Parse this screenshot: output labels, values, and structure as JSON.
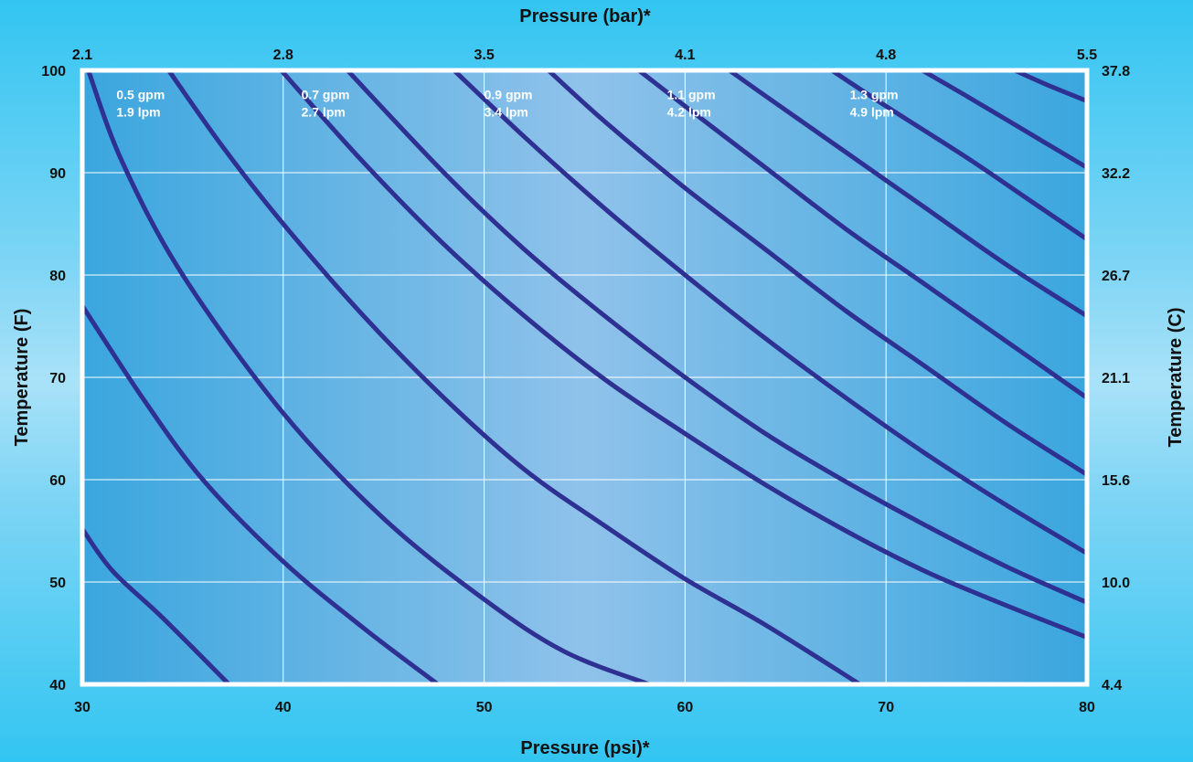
{
  "chart_data": {
    "type": "line",
    "title": "",
    "xlabel": "Pressure (psi)*",
    "x2label": "Pressure (bar)*",
    "ylabel": "Temperature (F)",
    "y2label": "Temperature (C)",
    "xlim": [
      30,
      80
    ],
    "ylim": [
      40,
      100
    ],
    "grid": true,
    "x_ticks": [
      "30",
      "40",
      "50",
      "60",
      "70",
      "80"
    ],
    "x2_ticks": [
      {
        "at": 30,
        "label": "2.1"
      },
      {
        "at": 40,
        "label": "2.8"
      },
      {
        "at": 50,
        "label": "3.5"
      },
      {
        "at": 60,
        "label": "4.1"
      },
      {
        "at": 70,
        "label": "4.8"
      },
      {
        "at": 80,
        "label": "5.5"
      }
    ],
    "y_ticks": [
      "40",
      "50",
      "60",
      "70",
      "80",
      "90",
      "100"
    ],
    "y2_ticks": [
      {
        "at": 40,
        "label": "4.4"
      },
      {
        "at": 50,
        "label": "10.0"
      },
      {
        "at": 60,
        "label": "15.6"
      },
      {
        "at": 70,
        "label": "21.1"
      },
      {
        "at": 80,
        "label": "26.7"
      },
      {
        "at": 90,
        "label": "32.2"
      },
      {
        "at": 100,
        "label": "37.8"
      }
    ],
    "curve_labels": [
      {
        "gpm": "0.5 gpm",
        "lpm": "1.9 lpm",
        "x": 31.7,
        "y": 97.2
      },
      {
        "gpm": "0.7 gpm",
        "lpm": "2.7 lpm",
        "x": 40.9,
        "y": 97.2
      },
      {
        "gpm": "0.9 gpm",
        "lpm": "3.4 lpm",
        "x": 50.0,
        "y": 97.2
      },
      {
        "gpm": "1.1 gpm",
        "lpm": "4.2 lpm",
        "x": 59.1,
        "y": 97.2
      },
      {
        "gpm": "1.3 gpm",
        "lpm": "4.9 lpm",
        "x": 68.2,
        "y": 97.2
      }
    ],
    "series": [
      {
        "values": [
          [
            30,
            55.2
          ],
          [
            31.5,
            51.1
          ],
          [
            34,
            46.5
          ],
          [
            37.3,
            40
          ]
        ]
      },
      {
        "values": [
          [
            30,
            77
          ],
          [
            33,
            68
          ],
          [
            36,
            60
          ],
          [
            40,
            52
          ],
          [
            44,
            45.5
          ],
          [
            47.7,
            40
          ]
        ]
      },
      {
        "values": [
          [
            30.3,
            100
          ],
          [
            32,
            91
          ],
          [
            35,
            80
          ],
          [
            40,
            66.5
          ],
          [
            45,
            56.2
          ],
          [
            50,
            48.3
          ],
          [
            54,
            43.2
          ],
          [
            58.2,
            40
          ]
        ]
      },
      {
        "values": [
          [
            34.3,
            100
          ],
          [
            37,
            92.5
          ],
          [
            40,
            85
          ],
          [
            44,
            76
          ],
          [
            48,
            68
          ],
          [
            52,
            61
          ],
          [
            56,
            55.5
          ],
          [
            60,
            50.3
          ],
          [
            64,
            45.8
          ],
          [
            68.7,
            40
          ]
        ]
      },
      {
        "values": [
          [
            39.9,
            100
          ],
          [
            44,
            91
          ],
          [
            48,
            83
          ],
          [
            52,
            76
          ],
          [
            56,
            69.8
          ],
          [
            60,
            64.5
          ],
          [
            64,
            59.5
          ],
          [
            68,
            55
          ],
          [
            72,
            51
          ],
          [
            76,
            47.7
          ],
          [
            80,
            44.6
          ]
        ]
      },
      {
        "values": [
          [
            43.2,
            100
          ],
          [
            48,
            90
          ],
          [
            52,
            82.5
          ],
          [
            56,
            76
          ],
          [
            60,
            70
          ],
          [
            64,
            64.5
          ],
          [
            68,
            59.8
          ],
          [
            72,
            55.5
          ],
          [
            76,
            51.5
          ],
          [
            80,
            48
          ]
        ]
      },
      {
        "values": [
          [
            48.5,
            100
          ],
          [
            52,
            93.5
          ],
          [
            56,
            86.5
          ],
          [
            60,
            80
          ],
          [
            64,
            73.8
          ],
          [
            68,
            68
          ],
          [
            72,
            62.5
          ],
          [
            76,
            57.5
          ],
          [
            80,
            52.8
          ]
        ]
      },
      {
        "values": [
          [
            53.2,
            100
          ],
          [
            56,
            95
          ],
          [
            60,
            88.5
          ],
          [
            64,
            82.5
          ],
          [
            68,
            76.5
          ],
          [
            72,
            71
          ],
          [
            76,
            65.5
          ],
          [
            80,
            60.5
          ]
        ]
      },
      {
        "values": [
          [
            57.7,
            100
          ],
          [
            60,
            96.5
          ],
          [
            64,
            90.5
          ],
          [
            68,
            84.5
          ],
          [
            72,
            79
          ],
          [
            76,
            73.5
          ],
          [
            80,
            68
          ]
        ]
      },
      {
        "values": [
          [
            62.2,
            100
          ],
          [
            64,
            97.5
          ],
          [
            68,
            92
          ],
          [
            72,
            86.5
          ],
          [
            76,
            81
          ],
          [
            80,
            76
          ]
        ]
      },
      {
        "values": [
          [
            67.3,
            100
          ],
          [
            70,
            96.5
          ],
          [
            74,
            91.5
          ],
          [
            77,
            87.5
          ],
          [
            80,
            83.5
          ]
        ]
      },
      {
        "values": [
          [
            71.8,
            100
          ],
          [
            74,
            97.5
          ],
          [
            77,
            94
          ],
          [
            80,
            90.5
          ]
        ]
      },
      {
        "values": [
          [
            76.4,
            100
          ],
          [
            78,
            98.6
          ],
          [
            80,
            97
          ]
        ]
      }
    ],
    "colors": {
      "curve": "#2e3192",
      "grid": "#ffffff",
      "frame": "#ffffff",
      "plot_edge": "#3aa6de",
      "plot_center": "#8fc2ea"
    }
  }
}
